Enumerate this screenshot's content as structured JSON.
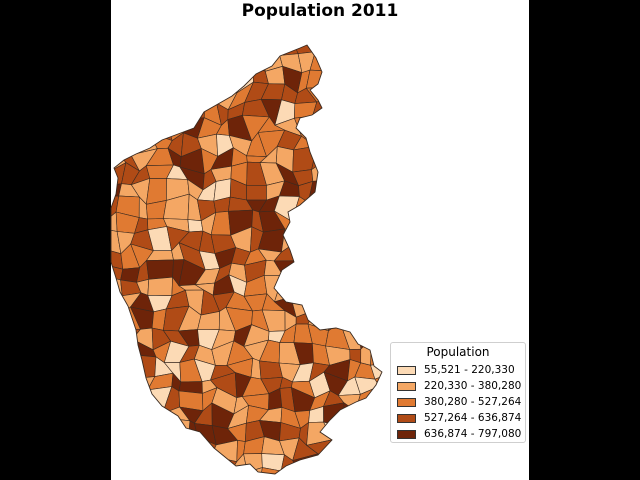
{
  "title": "Population 2011",
  "legend": {
    "title": "Population",
    "classes": [
      {
        "label": "55,521 - 220,330",
        "color": "#fcdab5"
      },
      {
        "label": "220,330 - 380,280",
        "color": "#f4a764"
      },
      {
        "label": "380,280 - 527,264",
        "color": "#e07a32"
      },
      {
        "label": "527,264 - 636,874",
        "color": "#b04b16"
      },
      {
        "label": "636,874 - 797,080",
        "color": "#6e2409"
      }
    ]
  },
  "colors": {
    "background": "#000000",
    "figure": "#ffffff",
    "region_border": "#3a2a20"
  }
}
